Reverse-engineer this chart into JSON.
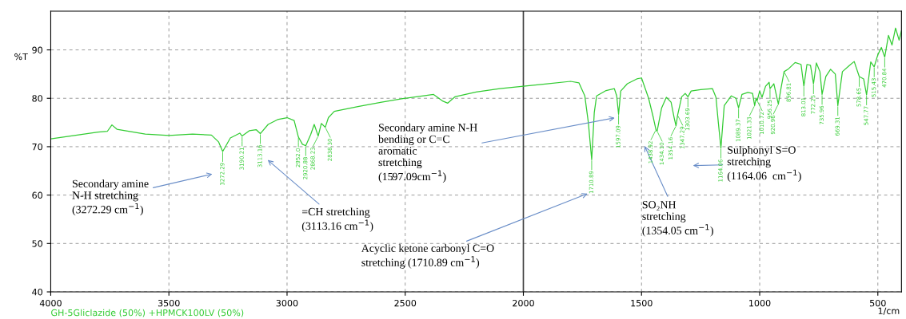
{
  "chart_data": {
    "type": "line",
    "xlabel": "1/cm",
    "ylabel": "%T",
    "xlim": [
      4000,
      400
    ],
    "ylim": [
      40,
      98
    ],
    "xticks": [
      4000,
      3500,
      3000,
      2500,
      2000,
      1500,
      1000,
      500
    ],
    "yticks": [
      40,
      50,
      60,
      70,
      80,
      90
    ],
    "grid": true,
    "legend": "bottom left",
    "ref_lines": [
      {
        "axis": "x",
        "value": 2000,
        "color": "#404040",
        "line_style": "solid"
      }
    ],
    "series": [
      {
        "name": "GH-5Gliclazide (50%) +HPMCK100LV (50%)",
        "color": "#33cc33",
        "x": [
          4000,
          3900,
          3800,
          3760,
          3741,
          3720,
          3650,
          3600,
          3500,
          3400,
          3320,
          3290,
          3272.29,
          3240,
          3200,
          3190.21,
          3160,
          3130,
          3113.16,
          3080,
          3040,
          3000,
          2970,
          2952.0,
          2935,
          2920.88,
          2900,
          2885,
          2868.23,
          2855,
          2838.3,
          2825,
          2800,
          2700,
          2600,
          2500,
          2380,
          2340,
          2320,
          2290,
          2200,
          2100,
          2000,
          1900,
          1800,
          1765,
          1740,
          1725,
          1710.89,
          1700,
          1690,
          1650,
          1615,
          1605,
          1597.09,
          1588,
          1560,
          1520,
          1500,
          1470,
          1450,
          1438.92,
          1434.1,
          1415,
          1395,
          1375,
          1362,
          1354.16,
          1347.29,
          1330,
          1315,
          1303.69,
          1290,
          1250,
          1200,
          1185,
          1175,
          1164.06,
          1150,
          1120,
          1100,
          1089.37,
          1075,
          1050,
          1030,
          1021.33,
          1015,
          1010.72,
          1000,
          990,
          975,
          960,
          956.25,
          940,
          920.96,
          910,
          896.81,
          880,
          850,
          825,
          813.01,
          800,
          785,
          772.25,
          760,
          745,
          735.96,
          720,
          700,
          680,
          669.31,
          650,
          620,
          600,
          578.65,
          560,
          547.77,
          530,
          515.43,
          500,
          485,
          470.84,
          455,
          440,
          425,
          410,
          400
        ],
        "values": [
          71.6,
          72.3,
          73.0,
          73.2,
          74.5,
          73.6,
          73.0,
          72.6,
          72.3,
          72.6,
          72.4,
          71.0,
          69.0,
          71.8,
          72.8,
          72.2,
          73.3,
          73.5,
          72.7,
          74.6,
          75.6,
          76.0,
          75.4,
          72.0,
          70.5,
          70.2,
          72.5,
          74.6,
          72.2,
          74.8,
          74.0,
          76.0,
          77.3,
          78.3,
          79.2,
          80.0,
          80.8,
          79.4,
          79.0,
          80.3,
          81.3,
          82.0,
          82.5,
          83.0,
          83.5,
          83.2,
          80.5,
          75.0,
          67.3,
          77.0,
          80.5,
          81.6,
          82.0,
          80.5,
          76.7,
          81.5,
          83.0,
          84.0,
          84.2,
          80.0,
          76.0,
          73.5,
          73.2,
          78.0,
          80.2,
          79.2,
          76.0,
          74.3,
          76.5,
          80.3,
          81.0,
          80.3,
          81.5,
          81.8,
          82.0,
          80.2,
          75.0,
          69.7,
          78.5,
          80.5,
          80.0,
          78.0,
          80.8,
          81.2,
          81.0,
          78.5,
          80.0,
          79.5,
          81.5,
          80.2,
          82.5,
          83.3,
          82.0,
          83.0,
          78.8,
          82.0,
          85.5,
          86.0,
          87.4,
          87.0,
          82.5,
          87.0,
          86.8,
          83.0,
          87.3,
          85.5,
          80.8,
          84.5,
          86.0,
          85.0,
          78.5,
          85.5,
          86.8,
          87.6,
          84.5,
          84.0,
          80.7,
          87.5,
          86.5,
          89.0,
          90.5,
          88.5,
          93.0,
          91.0,
          94.5,
          92.0,
          94.0
        ]
      }
    ],
    "annotations": [
      "Secondary amine\nN-H stretching\n(3272.29 cm$^{−1}$)",
      "=CH stretching\n(3113.16 cm$^{−1}$)",
      "Secondary amine N-H\nbending or C=C\naromatic\nstretching\n(1597.09cm$^{−1}$)",
      "Acyclic ketone carbonyl C=O\nstretching (1710.89 cm$^{−1}$)",
      "SO₂NH\nstretching\n(1354.05 cm$^{−1}$)",
      "Sulphonyl S=O\nstretching\n(1164.06  cm$^{−1}$)",
      {
        "text": "3272.29",
        "x": 3272.29,
        "y": 69.0
      },
      {
        "text": "3190.21",
        "x": 3190.21,
        "y": 72.2
      },
      {
        "text": "3113.16",
        "x": 3113.16,
        "y": 72.7
      },
      {
        "text": "2952.0",
        "x": 2952.0,
        "y": 72.0
      },
      {
        "text": "2920.88",
        "x": 2920.88,
        "y": 70.2
      },
      {
        "text": "2868.23",
        "x": 2868.23,
        "y": 72.2
      },
      {
        "text": "2838.30",
        "x": 2838.3,
        "y": 74.0
      },
      {
        "text": "1710.89",
        "x": 1710.89,
        "y": 67.3
      },
      {
        "text": "1597.09",
        "x": 1597.09,
        "y": 76.7
      },
      {
        "text": "1438.92",
        "x": 1438.92,
        "y": 73.5
      },
      {
        "text": "1434.10",
        "x": 1434.1,
        "y": 73.2
      },
      {
        "text": "1354.16",
        "x": 1354.16,
        "y": 74.3
      },
      {
        "text": "1347.29",
        "x": 1347.29,
        "y": 76.5
      },
      {
        "text": "1303.69",
        "x": 1303.69,
        "y": 80.3
      },
      {
        "text": "1164.06",
        "x": 1164.06,
        "y": 69.7
      },
      {
        "text": "1089.37",
        "x": 1089.37,
        "y": 78.0
      },
      {
        "text": "1021.33",
        "x": 1021.33,
        "y": 78.5
      },
      {
        "text": "1010.72",
        "x": 1010.72,
        "y": 79.5
      },
      {
        "text": "956.25",
        "x": 956.25,
        "y": 82.0
      },
      {
        "text": "920.96",
        "x": 920.96,
        "y": 78.8
      },
      {
        "text": "896.81",
        "x": 896.81,
        "y": 85.5
      },
      {
        "text": "813.01",
        "x": 813.01,
        "y": 82.5
      },
      {
        "text": "772.25",
        "x": 772.25,
        "y": 83.0
      },
      {
        "text": "735.96",
        "x": 735.96,
        "y": 80.8
      },
      {
        "text": "669.31",
        "x": 669.31,
        "y": 78.5
      },
      {
        "text": "578.65",
        "x": 578.65,
        "y": 84.5
      },
      {
        "text": "547.77",
        "x": 547.77,
        "y": 80.7
      },
      {
        "text": "515.43",
        "x": 515.43,
        "y": 86.5
      },
      {
        "text": "470.84",
        "x": 470.84,
        "y": 88.5
      }
    ]
  }
}
